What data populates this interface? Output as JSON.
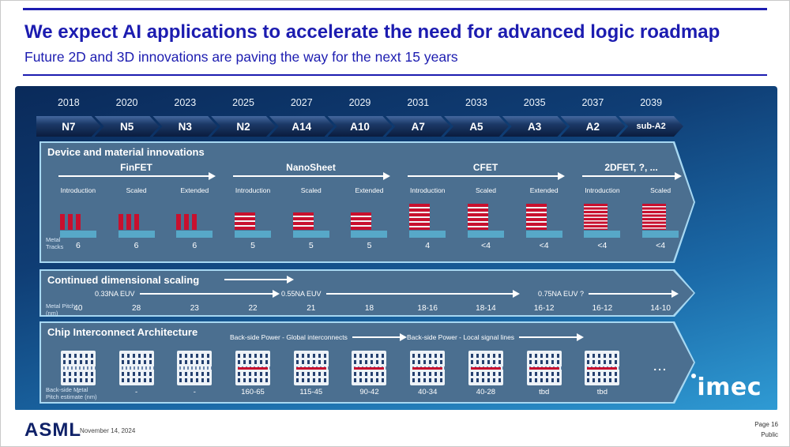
{
  "slide": {
    "title": "We expect AI applications to accelerate the need for advanced logic roadmap",
    "subtitle": "Future 2D and 3D innovations are paving the way for the next 15 years"
  },
  "timeline": {
    "years": [
      "2018",
      "2020",
      "2023",
      "2025",
      "2027",
      "2029",
      "2031",
      "2033",
      "2035",
      "2037",
      "2039"
    ],
    "nodes": [
      "N7",
      "N5",
      "N3",
      "N2",
      "A14",
      "A10",
      "A7",
      "A5",
      "A3",
      "A2",
      "sub-A2"
    ]
  },
  "device": {
    "title": "Device and material innovations",
    "groups": [
      {
        "label": "FinFET"
      },
      {
        "label": "NanoSheet"
      },
      {
        "label": "CFET"
      },
      {
        "label": "2DFET, ?, ..."
      }
    ],
    "phases": [
      "Introduction",
      "Scaled",
      "Extended",
      "Introduction",
      "Scaled",
      "Extended",
      "Introduction",
      "Scaled",
      "Extended",
      "Introduction",
      "Scaled"
    ],
    "tracks_label": "Metal Tracks",
    "tracks": [
      "6",
      "6",
      "6",
      "5",
      "5",
      "5",
      "4",
      "<4",
      "<4",
      "<4",
      "<4"
    ]
  },
  "scaling": {
    "title": "Continued dimensional scaling",
    "row_label": "Metal Pitch (nm)",
    "arrows": [
      "0.33NA EUV",
      "0.55NA EUV",
      "0.75NA EUV ?"
    ],
    "values": [
      "40",
      "28",
      "23",
      "22",
      "21",
      "18",
      "18-16",
      "18-14",
      "16-12",
      "16-12",
      "14-10"
    ]
  },
  "interconnect": {
    "title": "Chip Interconnect Architecture",
    "arrows": [
      "Back-side Power - Global interconnects",
      "Back-side Power - Local signal lines"
    ],
    "row_label": "Back-side Metal Pitch estimate (nm)",
    "values": [
      "-",
      "-",
      "-",
      "160-65",
      "115-45",
      "90-42",
      "40-34",
      "40-28",
      "tbd",
      "tbd"
    ],
    "more": "..."
  },
  "branding": {
    "imec": "imec"
  },
  "footer": {
    "asml": "ASML",
    "date": "November 14, 2024",
    "page": "Page 16",
    "classification": "Public"
  },
  "colors": {
    "accent": "#1c1cb0",
    "red": "#c8102e",
    "teal": "#57a8c8"
  }
}
